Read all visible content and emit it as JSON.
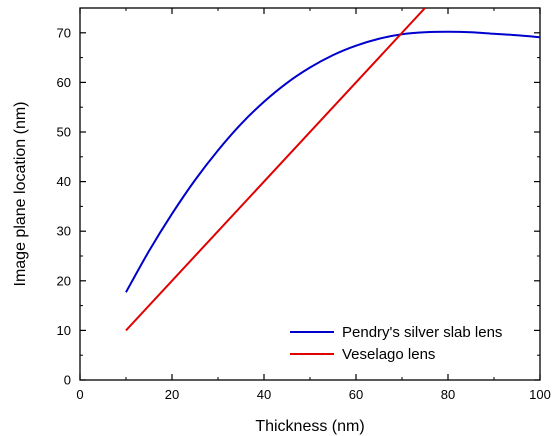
{
  "chart_data": {
    "type": "line",
    "xlabel": "Thickness (nm)",
    "ylabel": "Image plane location (nm)",
    "xlim": [
      0,
      100
    ],
    "ylim": [
      0,
      75
    ],
    "xticks": [
      0,
      20,
      40,
      60,
      80,
      100
    ],
    "yticks": [
      0,
      10,
      20,
      30,
      40,
      50,
      60,
      70
    ],
    "grid": false,
    "legend_position": "bottom-right",
    "series": [
      {
        "name": "Pendry's silver slab lens",
        "color": "#0000cc",
        "x": [
          10,
          15,
          20,
          25,
          30,
          35,
          40,
          45,
          50,
          55,
          60,
          65,
          70,
          75,
          80,
          85,
          90,
          95,
          100
        ],
        "y": [
          17.7,
          26.0,
          33.5,
          40.3,
          46.3,
          51.6,
          56.1,
          59.9,
          63.0,
          65.5,
          67.4,
          68.8,
          69.7,
          70.1,
          70.2,
          70.1,
          69.8,
          69.5,
          69.1
        ]
      },
      {
        "name": "Veselago lens",
        "color": "#e00000",
        "x": [
          10,
          75
        ],
        "y": [
          10,
          75
        ]
      }
    ]
  }
}
